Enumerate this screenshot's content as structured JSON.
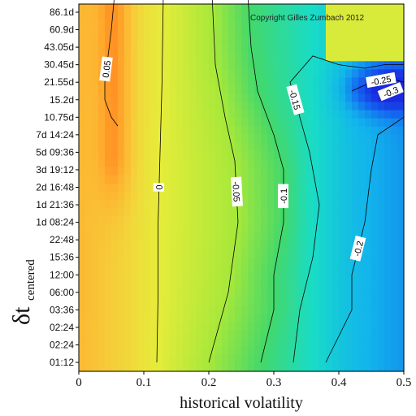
{
  "chart_data": {
    "type": "heatmap",
    "title": "",
    "xlabel": "historical volatility",
    "ylabel_main": "δt",
    "ylabel_sub": "centered",
    "xlim": [
      0,
      0.5
    ],
    "x_ticks": [
      "0",
      "0.1",
      "0.2",
      "0.3",
      "0.4",
      "0.5"
    ],
    "y_ticks": [
      "01:12",
      "02:24",
      "02:24",
      "03:36",
      "06:00",
      "12:00",
      "15:36",
      "22:48",
      "1d 08:24",
      "1d 21:36",
      "2d 16:48",
      "3d 19:12",
      "5d 09:36",
      "7d 14:24",
      "10.75d",
      "15.2d",
      "21.55d",
      "30.45d",
      "43.05d",
      "60.9d",
      "86.1d"
    ],
    "copyright": "Copyright Gilles Zumbach 2012",
    "contour_levels": [
      0.05,
      0,
      -0.05,
      -0.1,
      -0.15,
      -0.2,
      -0.25,
      -0.3
    ],
    "contours": [
      {
        "level": 0.05,
        "label": "0.05",
        "points": [
          [
            0.055,
            21
          ],
          [
            0.05,
            19
          ],
          [
            0.045,
            17.5
          ],
          [
            0.04,
            16
          ],
          [
            0.04,
            15
          ],
          [
            0.05,
            14
          ],
          [
            0.06,
            13.5
          ]
        ]
      },
      {
        "level": 0.0,
        "label": "0",
        "points": [
          [
            0.12,
            0
          ],
          [
            0.122,
            4
          ],
          [
            0.122,
            8
          ],
          [
            0.125,
            12
          ],
          [
            0.128,
            16
          ],
          [
            0.13,
            21
          ]
        ]
      },
      {
        "level": -0.05,
        "label": "-0.05",
        "points": [
          [
            0.2,
            0
          ],
          [
            0.23,
            4
          ],
          [
            0.245,
            8
          ],
          [
            0.24,
            11.5
          ],
          [
            0.225,
            14
          ],
          [
            0.21,
            17
          ],
          [
            0.205,
            21
          ]
        ]
      },
      {
        "level": -0.1,
        "label": "-0.1",
        "points": [
          [
            0.28,
            0
          ],
          [
            0.3,
            3
          ],
          [
            0.3,
            5
          ],
          [
            0.315,
            8
          ],
          [
            0.315,
            11
          ],
          [
            0.3,
            13
          ],
          [
            0.275,
            15.5
          ],
          [
            0.265,
            18
          ],
          [
            0.26,
            21
          ]
        ]
      },
      {
        "level": -0.15,
        "label": "-0.15",
        "points": [
          [
            0.33,
            0
          ],
          [
            0.34,
            3
          ],
          [
            0.36,
            6
          ],
          [
            0.37,
            9
          ],
          [
            0.355,
            12
          ],
          [
            0.34,
            14
          ],
          [
            0.325,
            16
          ],
          [
            0.36,
            17.5
          ],
          [
            0.4,
            17
          ],
          [
            0.44,
            16.8
          ],
          [
            0.47,
            17
          ],
          [
            0.5,
            17
          ]
        ]
      },
      {
        "level": -0.2,
        "label": "-0.2",
        "points": [
          [
            0.38,
            0
          ],
          [
            0.42,
            3
          ],
          [
            0.42,
            5
          ],
          [
            0.44,
            8
          ],
          [
            0.45,
            11
          ],
          [
            0.46,
            13
          ],
          [
            0.5,
            14
          ]
        ]
      },
      {
        "level": -0.25,
        "label": "-0.25",
        "points": [
          [
            0.42,
            15.5
          ],
          [
            0.45,
            16
          ],
          [
            0.48,
            16.2
          ],
          [
            0.5,
            16
          ]
        ]
      },
      {
        "level": -0.3,
        "label": "-0.3",
        "points": [
          [
            0.47,
            15.3
          ],
          [
            0.49,
            15.6
          ],
          [
            0.5,
            15.5
          ]
        ]
      }
    ],
    "colormap": [
      {
        "value": 0.08,
        "color": "#ff7a1a"
      },
      {
        "value": 0.05,
        "color": "#ffb030"
      },
      {
        "value": 0.02,
        "color": "#f4d23a"
      },
      {
        "value": 0.0,
        "color": "#e6ec3a"
      },
      {
        "value": -0.05,
        "color": "#a6e83a"
      },
      {
        "value": -0.1,
        "color": "#44d86a"
      },
      {
        "value": -0.15,
        "color": "#18dcc8"
      },
      {
        "value": -0.2,
        "color": "#12b4ec"
      },
      {
        "value": -0.25,
        "color": "#1466f0"
      },
      {
        "value": -0.3,
        "color": "#1a2ae0"
      }
    ]
  }
}
